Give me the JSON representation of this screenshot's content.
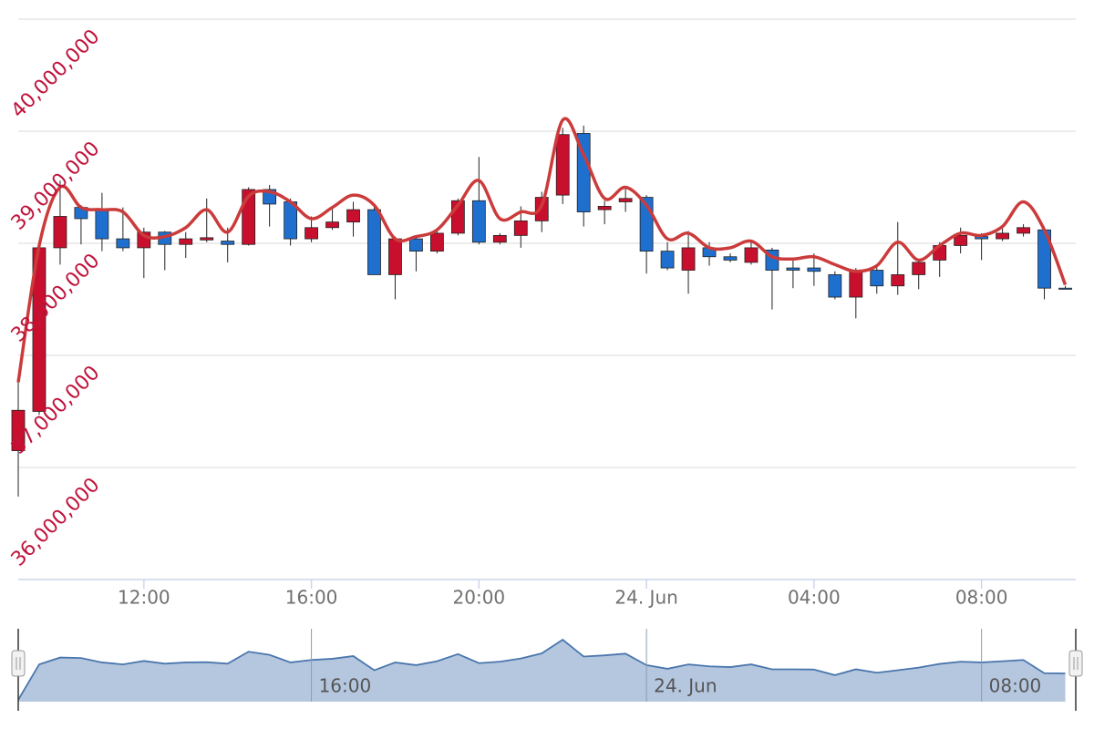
{
  "chart_data": {
    "type": "candlestick",
    "x": [
      "23 Jun 09:00",
      "23 Jun 09:30",
      "23 Jun 10:00",
      "23 Jun 10:30",
      "23 Jun 11:00",
      "23 Jun 11:30",
      "23 Jun 12:00",
      "23 Jun 12:30",
      "23 Jun 13:00",
      "23 Jun 13:30",
      "23 Jun 14:00",
      "23 Jun 14:30",
      "23 Jun 15:00",
      "23 Jun 15:30",
      "23 Jun 16:00",
      "23 Jun 16:30",
      "23 Jun 17:00",
      "23 Jun 17:30",
      "23 Jun 18:00",
      "23 Jun 18:30",
      "23 Jun 19:00",
      "23 Jun 19:30",
      "23 Jun 20:00",
      "23 Jun 20:30",
      "23 Jun 21:00",
      "23 Jun 21:30",
      "23 Jun 22:00",
      "23 Jun 22:30",
      "23 Jun 23:00",
      "23 Jun 23:30",
      "24 Jun 00:00",
      "24 Jun 00:30",
      "24 Jun 01:00",
      "24 Jun 01:30",
      "24 Jun 02:00",
      "24 Jun 02:30",
      "24 Jun 03:00",
      "24 Jun 03:30",
      "24 Jun 04:00",
      "24 Jun 04:30",
      "24 Jun 05:00",
      "24 Jun 05:30",
      "24 Jun 06:00",
      "24 Jun 06:30",
      "24 Jun 07:00",
      "24 Jun 07:30",
      "24 Jun 08:00",
      "24 Jun 08:30",
      "24 Jun 09:00",
      "24 Jun 09:30",
      "24 Jun 10:00"
    ],
    "xlim": [
      "23 Jun 09:00",
      "24 Jun 10:15"
    ],
    "xticks": [
      {
        "value": "23 Jun 12:00",
        "label": "12:00"
      },
      {
        "value": "23 Jun 16:00",
        "label": "16:00"
      },
      {
        "value": "23 Jun 20:00",
        "label": "20:00"
      },
      {
        "value": "24 Jun 00:00",
        "label": "24. Jun"
      },
      {
        "value": "24 Jun 04:00",
        "label": "04:00"
      },
      {
        "value": "24 Jun 08:00",
        "label": "08:00"
      }
    ],
    "ylim": [
      35000000,
      40000000
    ],
    "yticks": [
      {
        "value": 36000000,
        "label": "36,000,000"
      },
      {
        "value": 37000000,
        "label": "37,000,000"
      },
      {
        "value": 38000000,
        "label": "38,000,000"
      },
      {
        "value": 39000000,
        "label": "39,000,000"
      },
      {
        "value": 40000000,
        "label": "40,000,000"
      }
    ],
    "grid": true,
    "up_color": "#c8102e",
    "down_color": "#1f6fcf",
    "series": [
      {
        "type": "candlestick",
        "open": [
          36150000,
          36500000,
          37960000,
          38320000,
          38300000,
          38040000,
          37960000,
          38100000,
          37990000,
          38030000,
          38020000,
          37990000,
          38480000,
          38370000,
          38040000,
          38140000,
          38190000,
          38300000,
          37720000,
          38040000,
          37930000,
          38090000,
          38380000,
          38010000,
          38070000,
          38200000,
          38430000,
          38980000,
          38300000,
          38370000,
          38410000,
          37930000,
          37760000,
          37960000,
          37880000,
          37830000,
          37940000,
          37780000,
          37780000,
          37720000,
          37520000,
          37760000,
          37620000,
          37720000,
          37850000,
          37980000,
          38060000,
          38040000,
          38090000,
          38120000,
          37600000
        ],
        "high": [
          36760000,
          37980000,
          38560000,
          38340000,
          38450000,
          38320000,
          38140000,
          38110000,
          38100000,
          38400000,
          38140000,
          38500000,
          38520000,
          38400000,
          38240000,
          38330000,
          38370000,
          38330000,
          38060000,
          38070000,
          38110000,
          38400000,
          38770000,
          38090000,
          38330000,
          38460000,
          39030000,
          39050000,
          38380000,
          38500000,
          38430000,
          38010000,
          38110000,
          38010000,
          37910000,
          38010000,
          37960000,
          37860000,
          37910000,
          37750000,
          37780000,
          37800000,
          38190000,
          37850000,
          38010000,
          38140000,
          38090000,
          38140000,
          38170000,
          38150000,
          37620000
        ],
        "low": [
          35740000,
          36470000,
          37810000,
          37990000,
          37930000,
          37930000,
          37690000,
          37760000,
          37870000,
          38010000,
          37830000,
          37980000,
          38150000,
          37980000,
          38010000,
          38120000,
          38060000,
          37720000,
          37500000,
          37750000,
          37910000,
          38070000,
          37990000,
          37990000,
          37960000,
          38100000,
          38350000,
          38150000,
          38170000,
          38280000,
          37730000,
          37760000,
          37550000,
          37800000,
          37830000,
          37810000,
          37410000,
          37600000,
          37620000,
          37500000,
          37330000,
          37550000,
          37540000,
          37590000,
          37700000,
          37910000,
          37850000,
          38020000,
          38060000,
          37500000,
          37590000
        ],
        "close": [
          36510000,
          37960000,
          38240000,
          38220000,
          38040000,
          37960000,
          38100000,
          37990000,
          38040000,
          38050000,
          37990000,
          38480000,
          38350000,
          38040000,
          38140000,
          38190000,
          38300000,
          37720000,
          38040000,
          37930000,
          38090000,
          38380000,
          38010000,
          38070000,
          38200000,
          38410000,
          38970000,
          38280000,
          38330000,
          38400000,
          37930000,
          37780000,
          37960000,
          37880000,
          37850000,
          37960000,
          37760000,
          37760000,
          37750000,
          37520000,
          37760000,
          37620000,
          37720000,
          37830000,
          37980000,
          38070000,
          38040000,
          38090000,
          38140000,
          37600000,
          37590000
        ]
      },
      {
        "type": "spline",
        "color": "#cc3b3b",
        "values": [
          36760000,
          37980000,
          38500000,
          38320000,
          38300000,
          38280000,
          38070000,
          38060000,
          38140000,
          38300000,
          38100000,
          38420000,
          38460000,
          38370000,
          38220000,
          38320000,
          38430000,
          38340000,
          38040000,
          38060000,
          38120000,
          38340000,
          38560000,
          38220000,
          38280000,
          38340000,
          39100000,
          38790000,
          38400000,
          38500000,
          38340000,
          38040000,
          38090000,
          37960000,
          37960000,
          38020000,
          37880000,
          37860000,
          37880000,
          37810000,
          37750000,
          37800000,
          38010000,
          37850000,
          37980000,
          38090000,
          38070000,
          38150000,
          38370000,
          38120000,
          37630000
        ]
      }
    ],
    "navigator": {
      "fill": "#b5c7df",
      "stroke": "#4a76ad",
      "xticks": [
        {
          "value": "23 Jun 16:00",
          "label": "16:00"
        },
        {
          "value": "24 Jun 00:00",
          "label": "24. Jun"
        },
        {
          "value": "24 Jun 08:00",
          "label": "08:00"
        }
      ]
    }
  }
}
